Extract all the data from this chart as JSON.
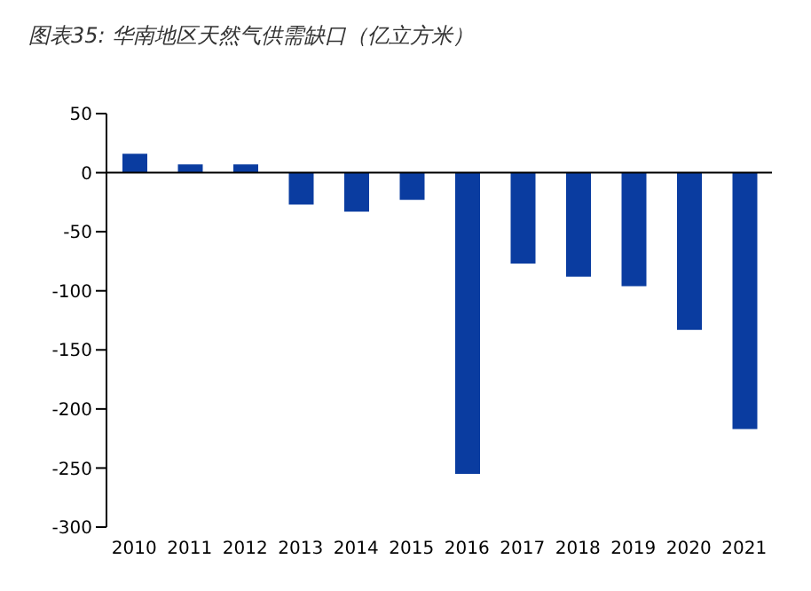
{
  "chart_data": {
    "type": "bar",
    "title": "图表35:  华南地区天然气供需缺口（亿立方米）",
    "categories": [
      "2010",
      "2011",
      "2012",
      "2013",
      "2014",
      "2015",
      "2016",
      "2017",
      "2018",
      "2019",
      "2020",
      "2021"
    ],
    "values": [
      16,
      7,
      7,
      -27,
      -33,
      -23,
      -255,
      -77,
      -88,
      -96,
      -133,
      -217
    ],
    "color": "#0a3ca0",
    "ylim": [
      -300,
      50
    ],
    "yticks": [
      -300,
      -250,
      -200,
      -150,
      -100,
      -50,
      0,
      50
    ]
  }
}
